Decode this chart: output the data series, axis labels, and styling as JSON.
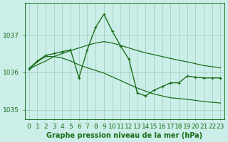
{
  "title": "Graphe pression niveau de la mer (hPa)",
  "bg_color": "#cceee8",
  "grid_color": "#99ccbb",
  "line_color": "#1a6e1a",
  "text_color": "#1a6e1a",
  "xlim": [
    -0.5,
    23.5
  ],
  "ylim": [
    1034.75,
    1037.85
  ],
  "yticks": [
    1035,
    1036,
    1037
  ],
  "xticks": [
    0,
    1,
    2,
    3,
    4,
    5,
    6,
    7,
    8,
    9,
    10,
    11,
    12,
    13,
    14,
    15,
    16,
    17,
    18,
    19,
    20,
    21,
    22,
    23
  ],
  "series": [
    {
      "x": [
        0,
        1,
        2,
        3,
        4,
        5,
        6,
        7,
        8,
        9,
        10,
        11,
        12,
        13,
        14,
        15,
        16,
        17,
        18,
        19,
        20,
        21,
        22,
        23
      ],
      "y": [
        1036.1,
        1036.3,
        1036.45,
        1036.5,
        1036.55,
        1036.6,
        1035.85,
        1036.6,
        1037.2,
        1037.55,
        1037.1,
        1036.7,
        1036.35,
        1035.45,
        1035.37,
        1035.52,
        1035.62,
        1035.72,
        1035.72,
        1035.9,
        1035.87,
        1035.85,
        1035.85,
        1035.85
      ],
      "marker": true,
      "linewidth": 1.0
    },
    {
      "x": [
        0,
        1,
        2,
        3,
        4,
        5,
        6,
        7,
        8,
        9,
        10,
        11,
        12,
        13,
        14,
        15,
        16,
        17,
        18,
        19,
        20,
        21,
        22,
        23
      ],
      "y": [
        1036.08,
        1036.28,
        1036.42,
        1036.42,
        1036.38,
        1036.3,
        1036.2,
        1036.12,
        1036.05,
        1035.98,
        1035.88,
        1035.78,
        1035.68,
        1035.58,
        1035.5,
        1035.42,
        1035.37,
        1035.32,
        1035.3,
        1035.28,
        1035.25,
        1035.22,
        1035.2,
        1035.18
      ],
      "marker": false,
      "linewidth": 0.9
    },
    {
      "x": [
        0,
        1,
        2,
        3,
        4,
        5,
        6,
        7,
        8,
        9,
        10,
        11,
        12,
        13,
        14,
        15,
        16,
        17,
        18,
        19,
        20,
        21,
        22,
        23
      ],
      "y": [
        1036.08,
        1036.2,
        1036.3,
        1036.42,
        1036.5,
        1036.58,
        1036.65,
        1036.72,
        1036.78,
        1036.82,
        1036.78,
        1036.72,
        1036.65,
        1036.58,
        1036.52,
        1036.47,
        1036.42,
        1036.37,
        1036.32,
        1036.28,
        1036.23,
        1036.18,
        1036.15,
        1036.12
      ],
      "marker": false,
      "linewidth": 0.9
    }
  ],
  "marker_style": "+",
  "markersize": 3,
  "xlabel_fontsize": 7,
  "tick_fontsize": 6.5
}
